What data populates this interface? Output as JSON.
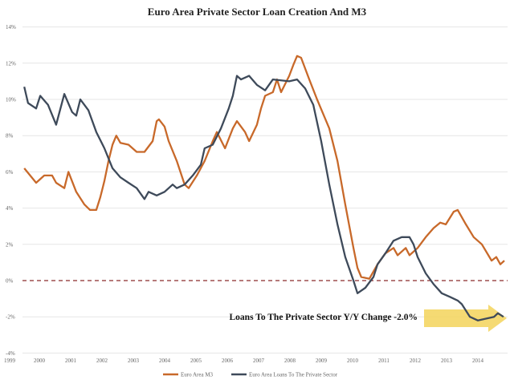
{
  "chart_data": {
    "type": "line",
    "title": "Euro Area Private Sector Loan Creation And M3",
    "xlabel": "",
    "ylabel": "",
    "xlim": [
      1999,
      2014.5
    ],
    "ylim": [
      -4,
      14
    ],
    "y_ticks": [
      -4,
      -2,
      0,
      2,
      4,
      6,
      8,
      10,
      12,
      14
    ],
    "y_tick_labels": [
      "-4%",
      "-2%",
      "0%",
      "2%",
      "4%",
      "6%",
      "8%",
      "10%",
      "12%",
      "14%"
    ],
    "x_ticks": [
      1999,
      2000,
      2001,
      2002,
      2003,
      2004,
      2005,
      2006,
      2007,
      2008,
      2009,
      2010,
      2011,
      2012,
      2013,
      2014
    ],
    "x_tick_labels": [
      "1999",
      "2000",
      "2001",
      "2002",
      "2003",
      "2004",
      "2005",
      "2006",
      "2007",
      "2008",
      "2009",
      "2010",
      "2011",
      "2012",
      "2013",
      "2014"
    ],
    "grid": true,
    "legend_position": "bottom",
    "reference_line": {
      "y": 0,
      "style": "dashed",
      "color": "#8b2a2a"
    },
    "annotation": {
      "text": "Loans To The Private Sector Y/Y Change -2.0%",
      "arrow_color": "#f3d35a"
    },
    "series": [
      {
        "name": "Euro Area M3",
        "color": "#c8692a",
        "x": [
          1999.03,
          1999.41,
          1999.67,
          1999.92,
          2000.05,
          2000.31,
          2000.44,
          2000.69,
          2000.95,
          2001.13,
          2001.33,
          2001.46,
          2001.59,
          2001.72,
          2001.85,
          2001.97,
          2002.1,
          2002.36,
          2002.62,
          2002.87,
          2003.13,
          2003.26,
          2003.33,
          2003.51,
          2003.64,
          2003.9,
          2004.15,
          2004.28,
          2004.54,
          2004.79,
          2005.05,
          2005.18,
          2005.44,
          2005.69,
          2005.82,
          2006.08,
          2006.21,
          2006.46,
          2006.59,
          2006.72,
          2006.97,
          2007.1,
          2007.23,
          2007.49,
          2007.62,
          2007.74,
          2007.87,
          2008.13,
          2008.38,
          2008.77,
          2009.03,
          2009.28,
          2009.54,
          2009.67,
          2009.79,
          2010.05,
          2010.31,
          2010.56,
          2010.82,
          2010.95,
          2011.21,
          2011.33,
          2011.59,
          2011.85,
          2012.1,
          2012.31,
          2012.49,
          2012.74,
          2012.87,
          2013.13,
          2013.38,
          2013.64,
          2013.95,
          2014.1,
          2014.23,
          2014.36
        ],
        "y": [
          6.2,
          5.4,
          5.8,
          5.8,
          5.4,
          5.1,
          6.0,
          4.9,
          4.2,
          3.9,
          3.9,
          4.6,
          5.5,
          6.6,
          7.5,
          8.0,
          7.6,
          7.5,
          7.1,
          7.1,
          7.7,
          8.8,
          8.9,
          8.5,
          7.7,
          6.6,
          5.3,
          5.1,
          5.8,
          6.6,
          7.7,
          8.2,
          7.3,
          8.4,
          8.8,
          8.2,
          7.7,
          8.6,
          9.5,
          10.2,
          10.4,
          11.1,
          10.4,
          11.3,
          11.9,
          12.4,
          12.3,
          11.1,
          10.0,
          8.4,
          6.6,
          4.2,
          1.8,
          0.7,
          0.2,
          0.1,
          0.9,
          1.5,
          1.8,
          1.4,
          1.8,
          1.4,
          1.8,
          2.4,
          2.9,
          3.2,
          3.1,
          3.8,
          3.9,
          3.1,
          2.4,
          2.0,
          1.1,
          1.3,
          0.9,
          1.1
        ]
      },
      {
        "name": "Euro Area Loans To The Private Sector",
        "color": "#3e4a5a",
        "x": [
          1999.03,
          1999.15,
          1999.41,
          1999.54,
          1999.79,
          2000.05,
          2000.31,
          2000.56,
          2000.69,
          2000.82,
          2001.08,
          2001.33,
          2001.59,
          2001.85,
          2002.1,
          2002.36,
          2002.62,
          2002.87,
          2003.0,
          2003.26,
          2003.51,
          2003.77,
          2003.9,
          2004.15,
          2004.41,
          2004.67,
          2004.79,
          2005.05,
          2005.31,
          2005.56,
          2005.69,
          2005.82,
          2005.95,
          2006.21,
          2006.46,
          2006.72,
          2006.97,
          2007.49,
          2007.74,
          2008.0,
          2008.26,
          2008.51,
          2008.77,
          2009.03,
          2009.28,
          2009.54,
          2009.67,
          2009.92,
          2010.18,
          2010.31,
          2010.56,
          2010.82,
          2011.08,
          2011.33,
          2011.46,
          2011.59,
          2011.85,
          2012.1,
          2012.36,
          2012.62,
          2012.87,
          2013.0,
          2013.26,
          2013.51,
          2013.77,
          2014.03,
          2014.15,
          2014.33
        ],
        "y": [
          10.7,
          9.8,
          9.5,
          10.2,
          9.7,
          8.6,
          10.3,
          9.3,
          9.1,
          10.0,
          9.4,
          8.2,
          7.3,
          6.2,
          5.7,
          5.4,
          5.1,
          4.5,
          4.9,
          4.7,
          4.9,
          5.3,
          5.1,
          5.3,
          5.8,
          6.4,
          7.3,
          7.5,
          8.4,
          9.5,
          10.2,
          11.3,
          11.1,
          11.3,
          10.8,
          10.5,
          11.1,
          11.0,
          11.1,
          10.6,
          9.7,
          7.7,
          5.3,
          3.1,
          1.3,
          0.0,
          -0.7,
          -0.4,
          0.2,
          0.9,
          1.5,
          2.2,
          2.4,
          2.4,
          2.0,
          1.3,
          0.4,
          -0.2,
          -0.7,
          -0.9,
          -1.1,
          -1.3,
          -2.0,
          -2.2,
          -2.1,
          -2.0,
          -1.8,
          -2.0
        ]
      }
    ]
  }
}
